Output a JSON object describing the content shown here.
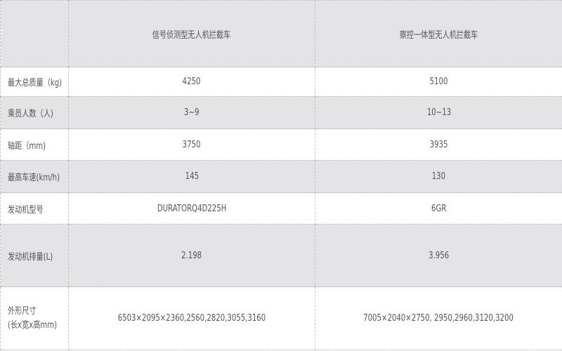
{
  "table": {
    "headers": [
      "",
      "信号侦测型无人机拦截车",
      "察控一体型无人机拦截车"
    ],
    "rows": [
      {
        "label": "最大总质量（kg)",
        "values": [
          "4250",
          "5100"
        ]
      },
      {
        "label": "乘员人数（人)",
        "values": [
          "3~9",
          "10~13"
        ]
      },
      {
        "label": "轴距（mm)",
        "values": [
          "3750",
          "3935"
        ]
      },
      {
        "label": "最高车速(km/h)",
        "values": [
          "145",
          "130"
        ]
      },
      {
        "label": "发动机型号",
        "values": [
          "DURATORQ4D225H",
          "6GR"
        ]
      },
      {
        "label": "发动机排量(L)",
        "values": [
          "2.198",
          "3.956"
        ]
      },
      {
        "label": "外形尺寸",
        "label2": "(长x宽x高mm)",
        "values": [
          "6503×2095×2360,2560,2820,3055,3160",
          "7005×2040×2750, 2950,2960,3120,3200"
        ]
      }
    ]
  },
  "colors": {
    "header_bg": "#e4e4e6",
    "stripe_bg": "#e4e4e6",
    "text": "#555555"
  }
}
